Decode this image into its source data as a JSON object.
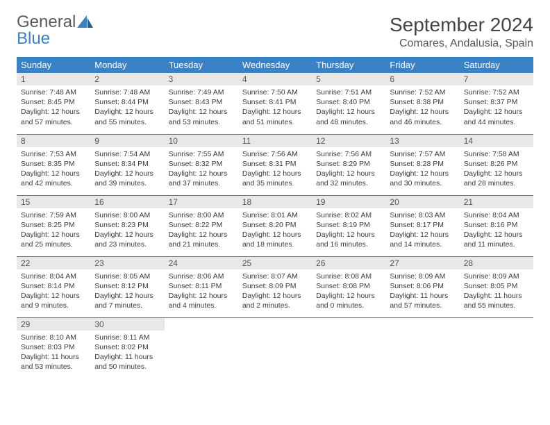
{
  "brand": {
    "text1": "General",
    "text2": "Blue"
  },
  "colors": {
    "header_bg": "#3b82c4",
    "header_fg": "#ffffff",
    "daynum_bg": "#e8e8e8",
    "border": "#3b82c4",
    "text": "#3a3a3a"
  },
  "fonts": {
    "body": "Arial, Helvetica, sans-serif",
    "title_size": 28,
    "location_size": 16,
    "th_size": 13,
    "daynum_size": 12,
    "cell_size": 10.5
  },
  "title": "September 2024",
  "location": "Comares, Andalusia, Spain",
  "weekdays": [
    "Sunday",
    "Monday",
    "Tuesday",
    "Wednesday",
    "Thursday",
    "Friday",
    "Saturday"
  ],
  "days": [
    {
      "n": 1,
      "sunrise": "7:48 AM",
      "sunset": "8:45 PM",
      "daylight": "12 hours and 57 minutes."
    },
    {
      "n": 2,
      "sunrise": "7:48 AM",
      "sunset": "8:44 PM",
      "daylight": "12 hours and 55 minutes."
    },
    {
      "n": 3,
      "sunrise": "7:49 AM",
      "sunset": "8:43 PM",
      "daylight": "12 hours and 53 minutes."
    },
    {
      "n": 4,
      "sunrise": "7:50 AM",
      "sunset": "8:41 PM",
      "daylight": "12 hours and 51 minutes."
    },
    {
      "n": 5,
      "sunrise": "7:51 AM",
      "sunset": "8:40 PM",
      "daylight": "12 hours and 48 minutes."
    },
    {
      "n": 6,
      "sunrise": "7:52 AM",
      "sunset": "8:38 PM",
      "daylight": "12 hours and 46 minutes."
    },
    {
      "n": 7,
      "sunrise": "7:52 AM",
      "sunset": "8:37 PM",
      "daylight": "12 hours and 44 minutes."
    },
    {
      "n": 8,
      "sunrise": "7:53 AM",
      "sunset": "8:35 PM",
      "daylight": "12 hours and 42 minutes."
    },
    {
      "n": 9,
      "sunrise": "7:54 AM",
      "sunset": "8:34 PM",
      "daylight": "12 hours and 39 minutes."
    },
    {
      "n": 10,
      "sunrise": "7:55 AM",
      "sunset": "8:32 PM",
      "daylight": "12 hours and 37 minutes."
    },
    {
      "n": 11,
      "sunrise": "7:56 AM",
      "sunset": "8:31 PM",
      "daylight": "12 hours and 35 minutes."
    },
    {
      "n": 12,
      "sunrise": "7:56 AM",
      "sunset": "8:29 PM",
      "daylight": "12 hours and 32 minutes."
    },
    {
      "n": 13,
      "sunrise": "7:57 AM",
      "sunset": "8:28 PM",
      "daylight": "12 hours and 30 minutes."
    },
    {
      "n": 14,
      "sunrise": "7:58 AM",
      "sunset": "8:26 PM",
      "daylight": "12 hours and 28 minutes."
    },
    {
      "n": 15,
      "sunrise": "7:59 AM",
      "sunset": "8:25 PM",
      "daylight": "12 hours and 25 minutes."
    },
    {
      "n": 16,
      "sunrise": "8:00 AM",
      "sunset": "8:23 PM",
      "daylight": "12 hours and 23 minutes."
    },
    {
      "n": 17,
      "sunrise": "8:00 AM",
      "sunset": "8:22 PM",
      "daylight": "12 hours and 21 minutes."
    },
    {
      "n": 18,
      "sunrise": "8:01 AM",
      "sunset": "8:20 PM",
      "daylight": "12 hours and 18 minutes."
    },
    {
      "n": 19,
      "sunrise": "8:02 AM",
      "sunset": "8:19 PM",
      "daylight": "12 hours and 16 minutes."
    },
    {
      "n": 20,
      "sunrise": "8:03 AM",
      "sunset": "8:17 PM",
      "daylight": "12 hours and 14 minutes."
    },
    {
      "n": 21,
      "sunrise": "8:04 AM",
      "sunset": "8:16 PM",
      "daylight": "12 hours and 11 minutes."
    },
    {
      "n": 22,
      "sunrise": "8:04 AM",
      "sunset": "8:14 PM",
      "daylight": "12 hours and 9 minutes."
    },
    {
      "n": 23,
      "sunrise": "8:05 AM",
      "sunset": "8:12 PM",
      "daylight": "12 hours and 7 minutes."
    },
    {
      "n": 24,
      "sunrise": "8:06 AM",
      "sunset": "8:11 PM",
      "daylight": "12 hours and 4 minutes."
    },
    {
      "n": 25,
      "sunrise": "8:07 AM",
      "sunset": "8:09 PM",
      "daylight": "12 hours and 2 minutes."
    },
    {
      "n": 26,
      "sunrise": "8:08 AM",
      "sunset": "8:08 PM",
      "daylight": "12 hours and 0 minutes."
    },
    {
      "n": 27,
      "sunrise": "8:09 AM",
      "sunset": "8:06 PM",
      "daylight": "11 hours and 57 minutes."
    },
    {
      "n": 28,
      "sunrise": "8:09 AM",
      "sunset": "8:05 PM",
      "daylight": "11 hours and 55 minutes."
    },
    {
      "n": 29,
      "sunrise": "8:10 AM",
      "sunset": "8:03 PM",
      "daylight": "11 hours and 53 minutes."
    },
    {
      "n": 30,
      "sunrise": "8:11 AM",
      "sunset": "8:02 PM",
      "daylight": "11 hours and 50 minutes."
    }
  ],
  "labels": {
    "sunrise": "Sunrise:",
    "sunset": "Sunset:",
    "daylight": "Daylight:"
  },
  "layout": {
    "start_weekday": 0,
    "columns": 7
  }
}
